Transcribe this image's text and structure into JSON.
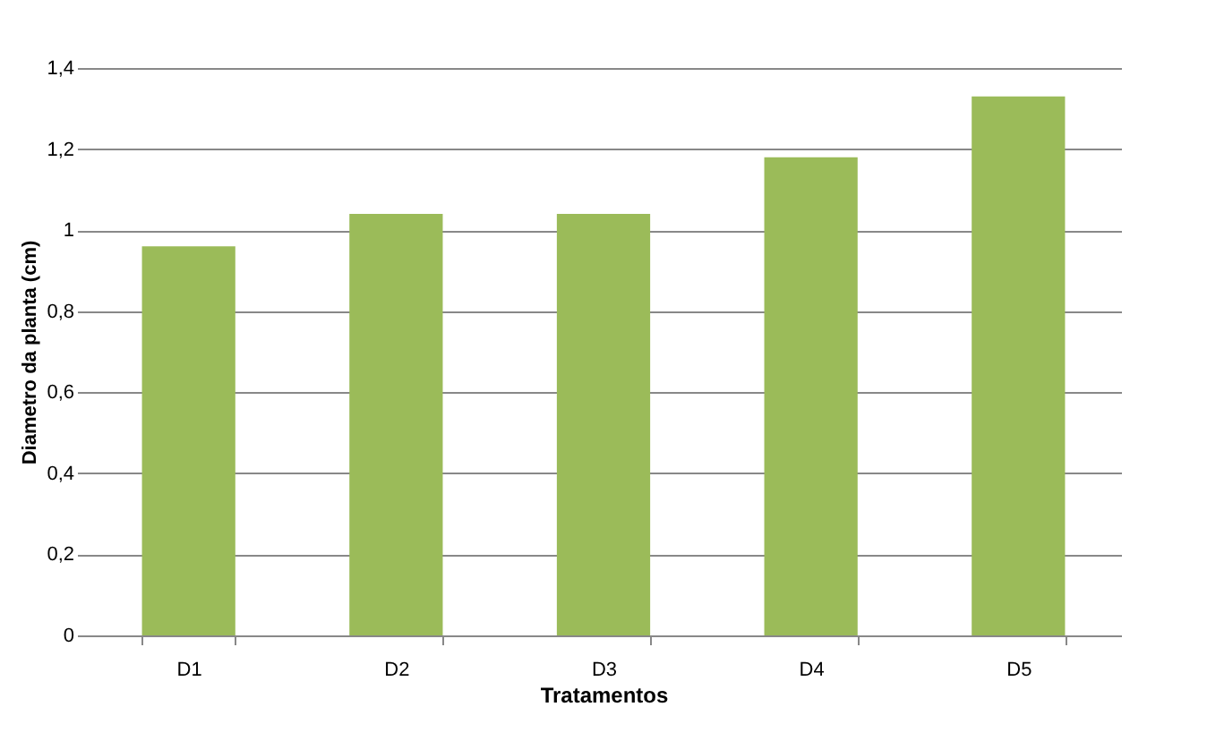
{
  "chart_data": {
    "type": "bar",
    "xlabel": "Tratamentos",
    "ylabel": "Diametro da planta (cm)",
    "categories": [
      "D1",
      "D2",
      "D3",
      "D4",
      "D5"
    ],
    "values": [
      0.96,
      1.04,
      1.04,
      1.18,
      1.33
    ],
    "color": "#9bbb59",
    "ylim": [
      0,
      1.4
    ],
    "yticks": [
      0,
      {
        "value": 0.2,
        "label": "0,2"
      },
      {
        "value": 0.4,
        "label": "0,4"
      },
      {
        "value": 0.6,
        "label": "0,6"
      },
      {
        "value": 0.8,
        "label": "0,8"
      },
      1,
      {
        "value": 1.2,
        "label": "1,2"
      },
      {
        "value": 1.4,
        "label": "1,4"
      }
    ],
    "grid": "y"
  }
}
